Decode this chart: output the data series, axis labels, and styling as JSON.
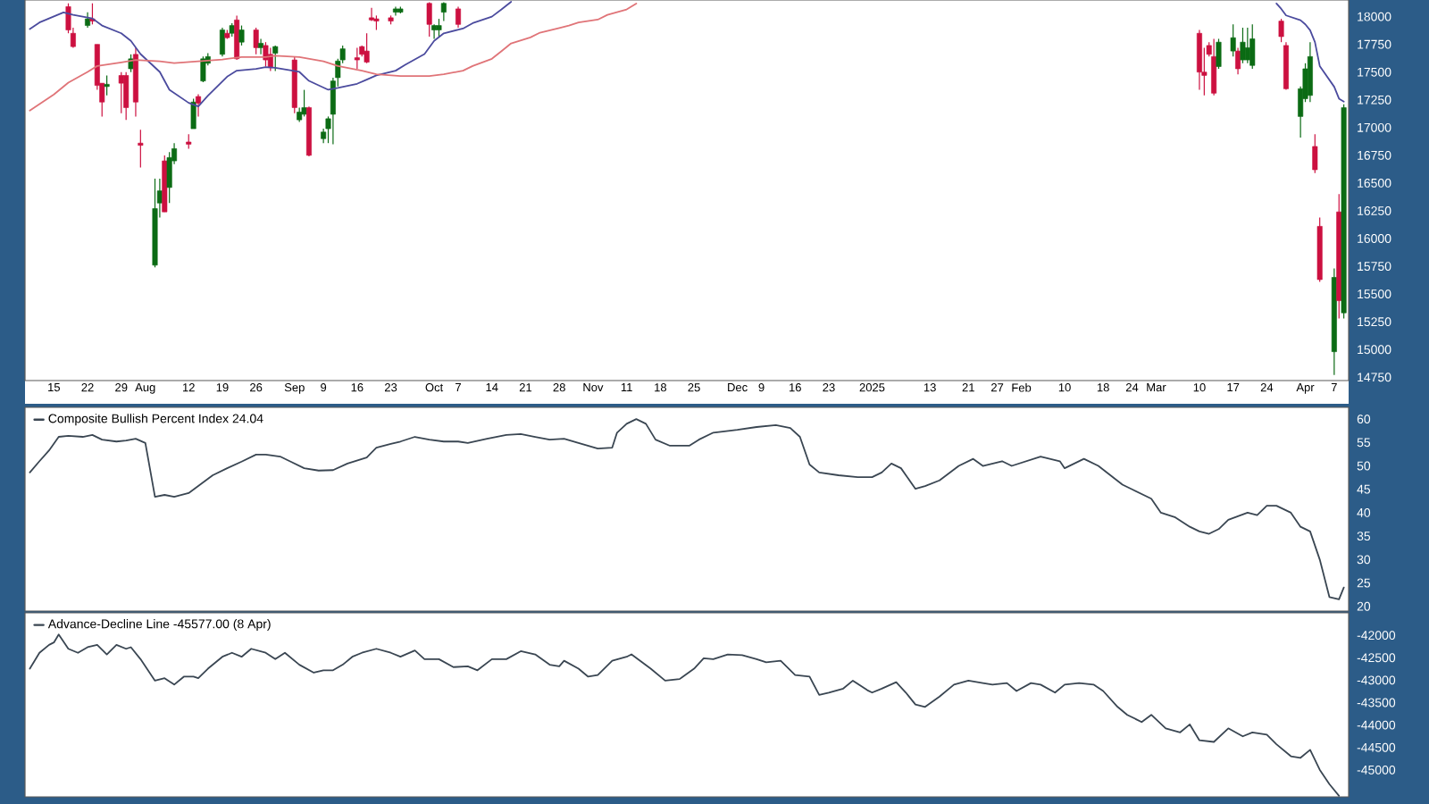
{
  "chart_data": [
    {
      "type": "candlestick",
      "xlim": [
        "2024-07-09",
        "2025-04-10"
      ],
      "ylim": [
        14720,
        18150
      ],
      "yticks": [
        14750,
        15000,
        15250,
        15500,
        15750,
        16000,
        16250,
        16500,
        16750,
        17000,
        17250,
        17500,
        17750,
        18000
      ],
      "xticks": [
        {
          "value": "2024-07-15",
          "label": "15"
        },
        {
          "value": "2024-07-22",
          "label": "22"
        },
        {
          "value": "2024-07-29",
          "label": "29"
        },
        {
          "value": "2024-08-03",
          "label": "Aug"
        },
        {
          "value": "2024-08-12",
          "label": "12"
        },
        {
          "value": "2024-08-19",
          "label": "19"
        },
        {
          "value": "2024-08-26",
          "label": "26"
        },
        {
          "value": "2024-09-03",
          "label": "Sep"
        },
        {
          "value": "2024-09-09",
          "label": "9"
        },
        {
          "value": "2024-09-16",
          "label": "16"
        },
        {
          "value": "2024-09-23",
          "label": "23"
        },
        {
          "value": "2024-10-02",
          "label": "Oct"
        },
        {
          "value": "2024-10-07",
          "label": "7"
        },
        {
          "value": "2024-10-14",
          "label": "14"
        },
        {
          "value": "2024-10-21",
          "label": "21"
        },
        {
          "value": "2024-10-28",
          "label": "28"
        },
        {
          "value": "2024-11-04",
          "label": "Nov"
        },
        {
          "value": "2024-11-11",
          "label": "11"
        },
        {
          "value": "2024-11-18",
          "label": "18"
        },
        {
          "value": "2024-11-25",
          "label": "25"
        },
        {
          "value": "2024-12-04",
          "label": "Dec"
        },
        {
          "value": "2024-12-09",
          "label": "9"
        },
        {
          "value": "2024-12-16",
          "label": "16"
        },
        {
          "value": "2024-12-23",
          "label": "23"
        },
        {
          "value": "2025-01-01",
          "label": "2025"
        },
        {
          "value": "2025-01-13",
          "label": "13"
        },
        {
          "value": "2025-01-21",
          "label": "21"
        },
        {
          "value": "2025-01-27",
          "label": "27"
        },
        {
          "value": "2025-02-01",
          "label": "Feb"
        },
        {
          "value": "2025-02-10",
          "label": "10"
        },
        {
          "value": "2025-02-18",
          "label": "18"
        },
        {
          "value": "2025-02-24",
          "label": "24"
        },
        {
          "value": "2025-03-01",
          "label": "Mar"
        },
        {
          "value": "2025-03-10",
          "label": "10"
        },
        {
          "value": "2025-03-17",
          "label": "17"
        },
        {
          "value": "2025-03-24",
          "label": "24"
        },
        {
          "value": "2025-04-01",
          "label": "Apr"
        },
        {
          "value": "2025-04-07",
          "label": "7"
        }
      ],
      "x": [
        "2024-07-18",
        "2024-07-19",
        "2024-07-22",
        "2024-07-23",
        "2024-07-24",
        "2024-07-25",
        "2024-07-26",
        "2024-07-29",
        "2024-07-30",
        "2024-07-31",
        "2024-08-01",
        "2024-08-02",
        "2024-08-05",
        "2024-08-06",
        "2024-08-07",
        "2024-08-08",
        "2024-08-09",
        "2024-08-12",
        "2024-08-13",
        "2024-08-14",
        "2024-08-15",
        "2024-08-16",
        "2024-08-19",
        "2024-08-20",
        "2024-08-21",
        "2024-08-22",
        "2024-08-23",
        "2024-08-26",
        "2024-08-27",
        "2024-08-28",
        "2024-08-29",
        "2024-08-30",
        "2024-09-03",
        "2024-09-04",
        "2024-09-05",
        "2024-09-06",
        "2024-09-09",
        "2024-09-10",
        "2024-09-11",
        "2024-09-12",
        "2024-09-13",
        "2024-09-16",
        "2024-09-17",
        "2024-09-18",
        "2024-09-19",
        "2024-09-20",
        "2024-09-23",
        "2024-09-24",
        "2024-09-25",
        "2024-10-01",
        "2024-10-02",
        "2024-10-03",
        "2024-10-04",
        "2024-10-07",
        "2025-03-10",
        "2025-03-11",
        "2025-03-12",
        "2025-03-13",
        "2025-03-14",
        "2025-03-17",
        "2025-03-18",
        "2025-03-19",
        "2025-03-20",
        "2025-03-21",
        "2025-03-27",
        "2025-03-28",
        "2025-03-31",
        "2025-04-01",
        "2025-04-02",
        "2025-04-03",
        "2025-04-04",
        "2025-04-07",
        "2025-04-08",
        "2025-04-09"
      ],
      "ohlc": [
        [
          18090,
          18120,
          17850,
          17880
        ],
        [
          17850,
          17900,
          17720,
          17730
        ],
        [
          17920,
          18040,
          17900,
          17980
        ],
        [
          17980,
          18120,
          17930,
          17960
        ],
        [
          17750,
          17750,
          17340,
          17380
        ],
        [
          17400,
          17400,
          17100,
          17230
        ],
        [
          17370,
          17470,
          17290,
          17390
        ],
        [
          17470,
          17500,
          17130,
          17400
        ],
        [
          17470,
          17500,
          17070,
          17180
        ],
        [
          17530,
          17660,
          17500,
          17620
        ],
        [
          17660,
          17720,
          17100,
          17230
        ],
        [
          16860,
          16980,
          16640,
          16840
        ],
        [
          15760,
          16540,
          15740,
          16270
        ],
        [
          16320,
          16540,
          16190,
          16430
        ],
        [
          16700,
          16750,
          16240,
          16240
        ],
        [
          16460,
          16780,
          16320,
          16730
        ],
        [
          16700,
          16860,
          16670,
          16810
        ],
        [
          16870,
          16940,
          16810,
          16850
        ],
        [
          16990,
          17260,
          16990,
          17230
        ],
        [
          17280,
          17300,
          17100,
          17220
        ],
        [
          17420,
          17640,
          17410,
          17620
        ],
        [
          17580,
          17670,
          17560,
          17640
        ],
        [
          17660,
          17900,
          17640,
          17880
        ],
        [
          17850,
          17880,
          17800,
          17810
        ],
        [
          17850,
          17940,
          17820,
          17920
        ],
        [
          17970,
          18010,
          17610,
          17620
        ],
        [
          17770,
          17920,
          17740,
          17880
        ],
        [
          17880,
          17900,
          17660,
          17720
        ],
        [
          17720,
          17800,
          17660,
          17760
        ],
        [
          17740,
          17770,
          17550,
          17610
        ],
        [
          17660,
          17720,
          17510,
          17540
        ],
        [
          17670,
          17740,
          17510,
          17730
        ],
        [
          17610,
          17640,
          17130,
          17180
        ],
        [
          17070,
          17180,
          17050,
          17140
        ],
        [
          17120,
          17340,
          17100,
          17180
        ],
        [
          17180,
          17190,
          16740,
          16750
        ],
        [
          16900,
          16990,
          16860,
          16960
        ],
        [
          16990,
          17100,
          16860,
          17080
        ],
        [
          17120,
          17450,
          16850,
          17420
        ],
        [
          17450,
          17620,
          17370,
          17600
        ],
        [
          17610,
          17740,
          17580,
          17710
        ],
        [
          17630,
          17720,
          17530,
          17610
        ],
        [
          17730,
          17740,
          17640,
          17660
        ],
        [
          17690,
          17850,
          17580,
          17590
        ],
        [
          17990,
          18080,
          17960,
          17970
        ],
        [
          17980,
          18010,
          17880,
          17960
        ],
        [
          17990,
          18010,
          17930,
          17960
        ],
        [
          18040,
          18090,
          18010,
          18070
        ],
        [
          18040,
          18090,
          18030,
          18070
        ],
        [
          18120,
          18130,
          17820,
          17930
        ],
        [
          17880,
          17930,
          17800,
          17920
        ],
        [
          17880,
          17980,
          17820,
          17920
        ],
        [
          18040,
          18130,
          17960,
          18120
        ],
        [
          18070,
          18090,
          17900,
          17930
        ],
        [
          17850,
          17880,
          17340,
          17500
        ],
        [
          17500,
          17720,
          17290,
          17470
        ],
        [
          17740,
          17770,
          17640,
          17660
        ],
        [
          17640,
          17800,
          17290,
          17310
        ],
        [
          17550,
          17800,
          17530,
          17770
        ],
        [
          17690,
          17930,
          17640,
          17810
        ],
        [
          17690,
          17720,
          17480,
          17530
        ],
        [
          17610,
          17900,
          17580,
          17770
        ],
        [
          17610,
          17900,
          17580,
          17720
        ],
        [
          17560,
          17930,
          17530,
          17800
        ],
        [
          17960,
          17980,
          17770,
          17820
        ],
        [
          17740,
          17770,
          17340,
          17350
        ],
        [
          17100,
          17370,
          16910,
          17350
        ],
        [
          17260,
          17580,
          17230,
          17530
        ],
        [
          17290,
          17770,
          17230,
          17640
        ],
        [
          16830,
          16940,
          16590,
          16620
        ],
        [
          16110,
          16190,
          15610,
          15630
        ],
        [
          14980,
          15730,
          14770,
          15650
        ],
        [
          16240,
          16400,
          15280,
          15440
        ],
        [
          15330,
          17210,
          15280,
          17180
        ]
      ],
      "colors": [
        "#cc1040",
        "#cc1040",
        "#0b6b14",
        "#cc1040",
        "#cc1040",
        "#cc1040",
        "#0b6b14",
        "#cc1040",
        "#cc1040",
        "#0b6b14",
        "#cc1040",
        "#cc1040",
        "#0b6b14",
        "#0b6b14",
        "#cc1040",
        "#0b6b14",
        "#0b6b14",
        "#cc1040",
        "#0b6b14",
        "#cc1040",
        "#0b6b14",
        "#0b6b14",
        "#0b6b14",
        "#cc1040",
        "#0b6b14",
        "#cc1040",
        "#0b6b14",
        "#cc1040",
        "#0b6b14",
        "#cc1040",
        "#cc1040",
        "#0b6b14",
        "#cc1040",
        "#0b6b14",
        "#0b6b14",
        "#cc1040",
        "#0b6b14",
        "#0b6b14",
        "#0b6b14",
        "#0b6b14",
        "#0b6b14",
        "#cc1040",
        "#cc1040",
        "#cc1040",
        "#cc1040",
        "#cc1040",
        "#cc1040",
        "#0b6b14",
        "#0b6b14",
        "#cc1040",
        "#0b6b14",
        "#0b6b14",
        "#0b6b14",
        "#cc1040",
        "#cc1040",
        "#cc1040",
        "#cc1040",
        "#cc1040",
        "#0b6b14",
        "#0b6b14",
        "#cc1040",
        "#0b6b14",
        "#0b6b14",
        "#0b6b14",
        "#cc1040",
        "#cc1040",
        "#0b6b14",
        "#0b6b14",
        "#0b6b14",
        "#cc1040",
        "#cc1040",
        "#0b6b14",
        "#cc1040",
        "#0b6b14"
      ],
      "series": [
        {
          "type": "line",
          "color": "#4b4b9e",
          "x": [
            "2024-07-10",
            "2024-07-12",
            "2024-07-17",
            "2024-07-19",
            "2024-07-23",
            "2024-07-25",
            "2024-07-29",
            "2024-07-31",
            "2024-08-02",
            "2024-08-06",
            "2024-08-08",
            "2024-08-12",
            "2024-08-14",
            "2024-08-16",
            "2024-08-20",
            "2024-08-22",
            "2024-08-26",
            "2024-08-28",
            "2024-08-30",
            "2024-09-04",
            "2024-09-06",
            "2024-09-10",
            "2024-09-12",
            "2024-09-16",
            "2024-09-18",
            "2024-09-20",
            "2024-09-24",
            "2024-09-26",
            "2024-09-30",
            "2024-10-02",
            "2024-10-04",
            "2024-10-08",
            "2024-10-10",
            "2024-10-14",
            "2024-10-16",
            "2024-10-18",
            "2024-12-15",
            "2025-03-26",
            "2025-03-27",
            "2025-03-28",
            "2025-03-31",
            "2025-04-01",
            "2025-04-02",
            "2025-04-03",
            "2025-04-04",
            "2025-04-07",
            "2025-04-08",
            "2025-04-09"
          ],
          "values": [
            17888,
            17947,
            18038,
            18016,
            17984,
            17920,
            17850,
            17781,
            17663,
            17502,
            17341,
            17223,
            17191,
            17287,
            17459,
            17513,
            17529,
            17545,
            17539,
            17502,
            17421,
            17341,
            17357,
            17395,
            17432,
            17470,
            17513,
            17566,
            17663,
            17781,
            17850,
            17893,
            17941,
            18000,
            18065,
            18134,
            null,
            18118,
            18070,
            18011,
            17968,
            17931,
            17877,
            17770,
            17555,
            17368,
            17261,
            17234
          ]
        },
        {
          "type": "line",
          "color": "#e07478",
          "x": [
            "2024-07-10",
            "2024-07-15",
            "2024-07-18",
            "2024-07-22",
            "2024-07-24",
            "2024-07-29",
            "2024-08-01",
            "2024-08-06",
            "2024-08-09",
            "2024-08-14",
            "2024-08-19",
            "2024-08-23",
            "2024-08-28",
            "2024-08-30",
            "2024-09-04",
            "2024-09-09",
            "2024-09-12",
            "2024-09-17",
            "2024-09-20",
            "2024-09-25",
            "2024-10-01",
            "2024-10-04",
            "2024-10-08",
            "2024-10-10",
            "2024-10-14",
            "2024-10-16",
            "2024-10-18",
            "2024-10-22",
            "2024-10-24",
            "2024-10-28",
            "2024-10-30",
            "2024-11-01",
            "2024-11-05",
            "2024-11-07",
            "2024-11-11",
            "2024-11-13"
          ],
          "values": [
            17153,
            17298,
            17405,
            17502,
            17555,
            17588,
            17609,
            17598,
            17582,
            17598,
            17614,
            17636,
            17636,
            17647,
            17636,
            17598,
            17555,
            17513,
            17480,
            17464,
            17464,
            17480,
            17513,
            17555,
            17620,
            17689,
            17759,
            17813,
            17856,
            17898,
            17920,
            17947,
            17973,
            18016,
            18065,
            18118
          ]
        }
      ]
    },
    {
      "type": "line",
      "xlim": [
        "2024-07-09",
        "2025-04-10"
      ],
      "ylim": [
        19,
        62.5
      ],
      "yticks": [
        20,
        25,
        30,
        35,
        40,
        45,
        50,
        55,
        60
      ],
      "tick_labels": "y",
      "legend": "top left",
      "series": [
        {
          "name": "Composite Bullish Percent Index 24.04",
          "color": "#3a4652",
          "x": [
            "2024-07-10",
            "2024-07-12",
            "2024-07-14",
            "2024-07-16",
            "2024-07-18",
            "2024-07-21",
            "2024-07-23",
            "2024-07-25",
            "2024-07-28",
            "2024-07-30",
            "2024-08-01",
            "2024-08-03",
            "2024-08-05",
            "2024-08-07",
            "2024-08-09",
            "2024-08-12",
            "2024-08-14",
            "2024-08-17",
            "2024-08-20",
            "2024-08-23",
            "2024-08-26",
            "2024-08-28",
            "2024-08-31",
            "2024-09-02",
            "2024-09-05",
            "2024-09-08",
            "2024-09-11",
            "2024-09-14",
            "2024-09-18",
            "2024-09-20",
            "2024-09-23",
            "2024-09-25",
            "2024-09-28",
            "2024-10-01",
            "2024-10-04",
            "2024-10-07",
            "2024-10-09",
            "2024-10-13",
            "2024-10-17",
            "2024-10-20",
            "2024-10-23",
            "2024-10-26",
            "2024-10-29",
            "2024-11-01",
            "2024-11-05",
            "2024-11-08",
            "2024-11-09",
            "2024-11-11",
            "2024-11-13",
            "2024-11-15",
            "2024-11-17",
            "2024-11-20",
            "2024-11-24",
            "2024-11-26",
            "2024-11-29",
            "2024-12-04",
            "2024-12-08",
            "2024-12-12",
            "2024-12-15",
            "2024-12-17",
            "2024-12-19",
            "2024-12-21",
            "2024-12-25",
            "2024-12-29",
            "2025-01-01",
            "2025-01-03",
            "2025-01-05",
            "2025-01-07",
            "2025-01-10",
            "2025-01-12",
            "2025-01-15",
            "2025-01-19",
            "2025-01-22",
            "2025-01-24",
            "2025-01-28",
            "2025-01-30",
            "2025-02-05",
            "2025-02-09",
            "2025-02-10",
            "2025-02-14",
            "2025-02-17",
            "2025-02-22",
            "2025-02-24",
            "2025-02-28",
            "2025-03-02",
            "2025-03-05",
            "2025-03-08",
            "2025-03-10",
            "2025-03-12",
            "2025-03-14",
            "2025-03-16",
            "2025-03-20",
            "2025-03-22",
            "2025-03-24",
            "2025-03-26",
            "2025-03-29",
            "2025-03-31",
            "2025-04-02",
            "2025-04-04",
            "2025-04-06",
            "2025-04-08",
            "2025-04-09"
          ],
          "values": [
            48.6,
            51.0,
            53.3,
            56.2,
            56.4,
            56.2,
            56.6,
            55.6,
            55.2,
            55.4,
            55.8,
            54.9,
            43.4,
            43.8,
            43.4,
            44.2,
            45.7,
            48.0,
            49.5,
            50.9,
            52.4,
            52.4,
            52.0,
            51.0,
            49.5,
            49.0,
            49.1,
            50.5,
            51.8,
            53.9,
            54.7,
            55.2,
            56.2,
            55.6,
            55.2,
            55.2,
            54.9,
            55.8,
            56.6,
            56.8,
            56.2,
            55.6,
            55.8,
            54.9,
            53.7,
            53.9,
            57.1,
            59.0,
            60.0,
            59.0,
            55.6,
            54.3,
            54.3,
            55.6,
            57.1,
            57.7,
            58.3,
            58.7,
            58.1,
            56.2,
            50.3,
            48.6,
            48.0,
            47.6,
            47.6,
            48.6,
            50.5,
            49.5,
            45.1,
            45.7,
            46.9,
            50.0,
            51.5,
            50.0,
            51.0,
            50.0,
            52.0,
            51.0,
            49.5,
            51.5,
            50.0,
            46.0,
            45.0,
            43.0,
            40.0,
            39.0,
            37.0,
            36.0,
            35.5,
            36.5,
            38.5,
            40.0,
            39.5,
            41.5,
            41.5,
            40.0,
            37.0,
            36.0,
            30.0,
            22.0,
            21.5,
            24.04
          ]
        }
      ]
    },
    {
      "type": "line",
      "xlim": [
        "2024-07-09",
        "2025-04-10"
      ],
      "ylim": [
        -45600,
        -41500
      ],
      "yticks": [
        -42000,
        -42500,
        -43000,
        -43500,
        -44000,
        -44500,
        -45000
      ],
      "tick_labels": "y",
      "legend": "top left",
      "series": [
        {
          "name": "Advance-Decline Line -45577.00 (8 Apr)",
          "color": "#3a4652",
          "x": [
            "2024-07-10",
            "2024-07-12",
            "2024-07-14",
            "2024-07-15",
            "2024-07-16",
            "2024-07-18",
            "2024-07-20",
            "2024-07-22",
            "2024-07-24",
            "2024-07-26",
            "2024-07-28",
            "2024-07-30",
            "2024-07-31",
            "2024-08-02",
            "2024-08-05",
            "2024-08-07",
            "2024-08-09",
            "2024-08-11",
            "2024-08-13",
            "2024-08-14",
            "2024-08-16",
            "2024-08-19",
            "2024-08-21",
            "2024-08-23",
            "2024-08-25",
            "2024-08-28",
            "2024-08-30",
            "2024-09-01",
            "2024-09-04",
            "2024-09-07",
            "2024-09-09",
            "2024-09-11",
            "2024-09-13",
            "2024-09-15",
            "2024-09-17",
            "2024-09-20",
            "2024-09-23",
            "2024-09-25",
            "2024-09-28",
            "2024-09-30",
            "2024-10-03",
            "2024-10-06",
            "2024-10-09",
            "2024-10-11",
            "2024-10-14",
            "2024-10-17",
            "2024-10-20",
            "2024-10-23",
            "2024-10-26",
            "2024-10-28",
            "2024-10-29",
            "2024-11-01",
            "2024-11-03",
            "2024-11-05",
            "2024-11-08",
            "2024-11-11",
            "2024-11-12",
            "2024-11-16",
            "2024-11-19",
            "2024-11-22",
            "2024-11-25",
            "2024-11-27",
            "2024-11-29",
            "2024-12-02",
            "2024-12-05",
            "2024-12-08",
            "2024-12-10",
            "2024-12-13",
            "2024-12-16",
            "2024-12-19",
            "2024-12-21",
            "2024-12-23",
            "2024-12-26",
            "2024-12-28",
            "2024-12-31",
            "2025-01-01",
            "2025-01-03",
            "2025-01-06",
            "2025-01-08",
            "2025-01-10",
            "2025-01-12",
            "2025-01-15",
            "2025-01-18",
            "2025-01-21",
            "2025-01-24",
            "2025-01-26",
            "2025-01-29",
            "2025-01-31",
            "2025-02-03",
            "2025-02-05",
            "2025-02-08",
            "2025-02-10",
            "2025-02-13",
            "2025-02-16",
            "2025-02-18",
            "2025-02-21",
            "2025-02-23",
            "2025-02-26",
            "2025-02-28",
            "2025-03-03",
            "2025-03-06",
            "2025-03-08",
            "2025-03-10",
            "2025-03-13",
            "2025-03-16",
            "2025-03-19",
            "2025-03-21",
            "2025-03-24",
            "2025-03-26",
            "2025-03-29",
            "2025-03-31",
            "2025-04-02",
            "2025-04-04",
            "2025-04-06",
            "2025-04-08"
          ],
          "values": [
            -42745,
            -42390,
            -42213,
            -42160,
            -41982,
            -42301,
            -42390,
            -42266,
            -42213,
            -42426,
            -42213,
            -42301,
            -42266,
            -42532,
            -43011,
            -42957,
            -43099,
            -42922,
            -42922,
            -42957,
            -42745,
            -42479,
            -42390,
            -42479,
            -42301,
            -42390,
            -42532,
            -42390,
            -42656,
            -42833,
            -42780,
            -42780,
            -42656,
            -42479,
            -42390,
            -42301,
            -42390,
            -42479,
            -42337,
            -42532,
            -42532,
            -42709,
            -42691,
            -42780,
            -42532,
            -42532,
            -42355,
            -42426,
            -42656,
            -42691,
            -42567,
            -42745,
            -42922,
            -42887,
            -42567,
            -42479,
            -42426,
            -42745,
            -43011,
            -42975,
            -42745,
            -42514,
            -42532,
            -42426,
            -42443,
            -42532,
            -42603,
            -42567,
            -42887,
            -42922,
            -43330,
            -43277,
            -43188,
            -43011,
            -43223,
            -43277,
            -43188,
            -43046,
            -43277,
            -43543,
            -43596,
            -43365,
            -43099,
            -43011,
            -43064,
            -43099,
            -43064,
            -43241,
            -43064,
            -43099,
            -43277,
            -43099,
            -43064,
            -43099,
            -43241,
            -43596,
            -43773,
            -43933,
            -43773,
            -44074,
            -44163,
            -43986,
            -44340,
            -44376,
            -44074,
            -44252,
            -44163,
            -44216,
            -44429,
            -44695,
            -44730,
            -44553,
            -44996,
            -45316,
            -45577
          ]
        }
      ]
    }
  ]
}
